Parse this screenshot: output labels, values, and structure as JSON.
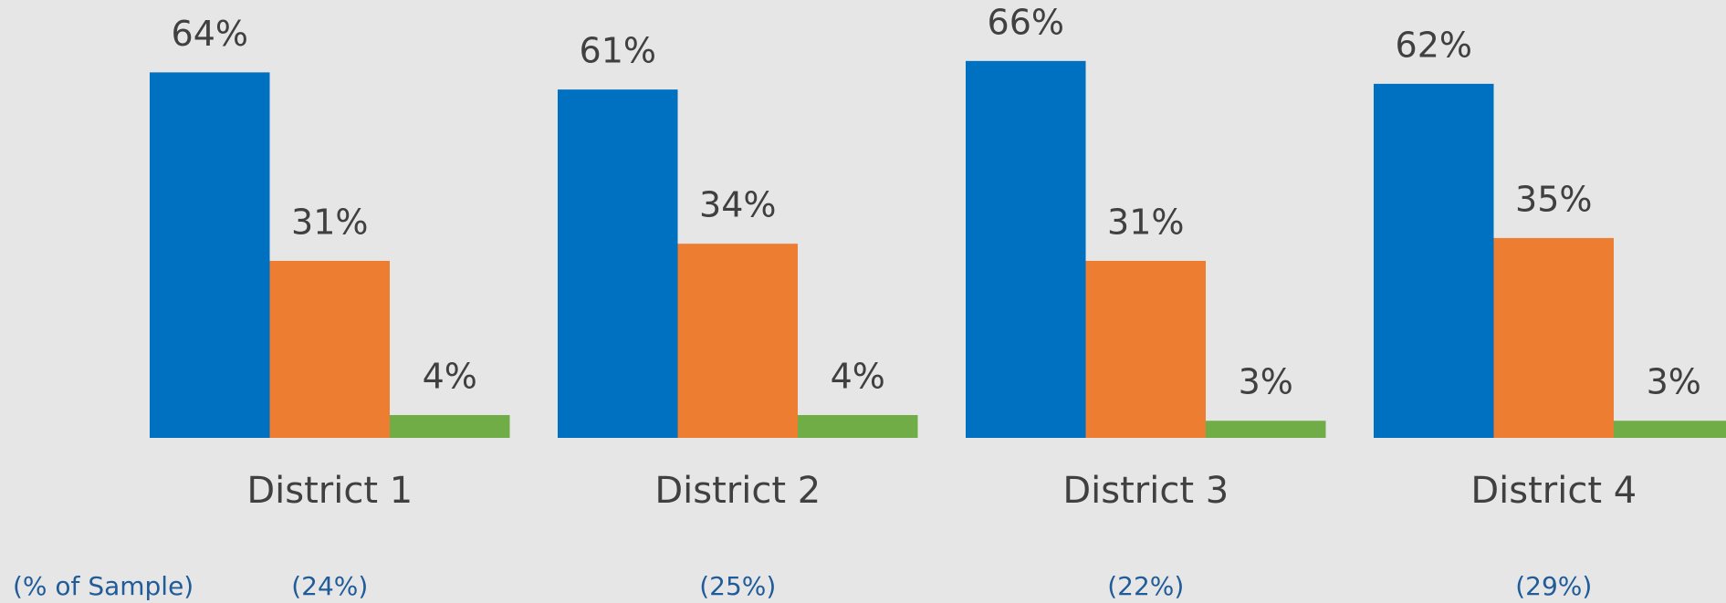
{
  "chart_data": {
    "type": "bar",
    "categories": [
      "District 1",
      "District 2",
      "District 3",
      "District 4"
    ],
    "series": [
      {
        "color": "#0070c0",
        "values": [
          64,
          61,
          66,
          62
        ],
        "value_labels": [
          "64%",
          "61%",
          "66%",
          "62%"
        ]
      },
      {
        "color": "#ed7d31",
        "values": [
          31,
          34,
          31,
          35
        ],
        "value_labels": [
          "31%",
          "34%",
          "31%",
          "35%"
        ]
      },
      {
        "color": "#70ad47",
        "values": [
          4,
          4,
          3,
          3
        ],
        "value_labels": [
          "4%",
          "4%",
          "3%",
          "3%"
        ]
      }
    ],
    "ylim": [
      0,
      75
    ],
    "sample_row": {
      "label": "(% of Sample)",
      "labels": [
        "(24%)",
        "(25%)",
        "(22%)",
        "(29%)"
      ]
    }
  }
}
